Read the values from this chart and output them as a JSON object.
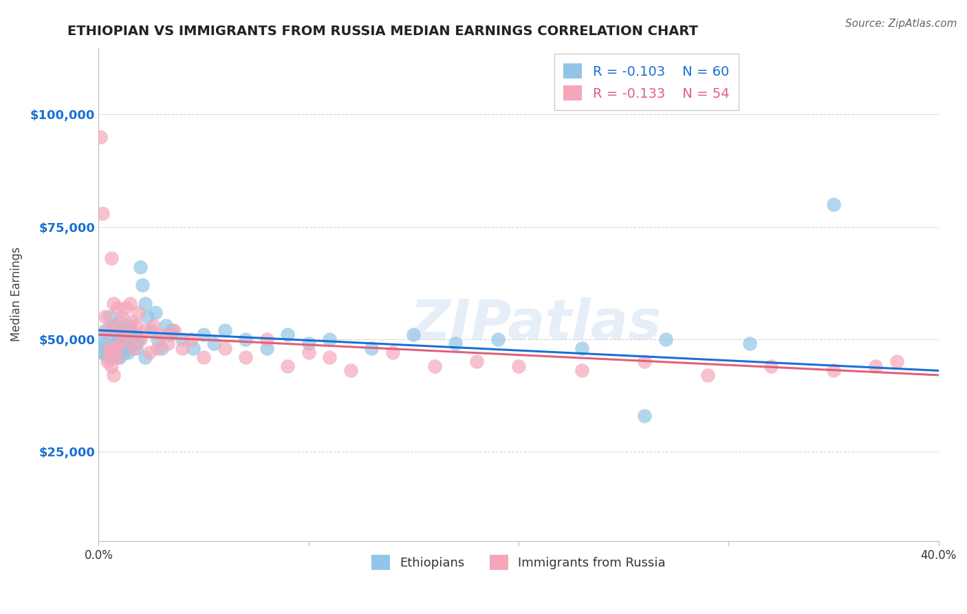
{
  "title": "ETHIOPIAN VS IMMIGRANTS FROM RUSSIA MEDIAN EARNINGS CORRELATION CHART",
  "source_text": "Source: ZipAtlas.com",
  "ylabel": "Median Earnings",
  "xlim": [
    0.0,
    0.4
  ],
  "ylim": [
    5000,
    115000
  ],
  "yticks": [
    25000,
    50000,
    75000,
    100000
  ],
  "ytick_labels": [
    "$25,000",
    "$50,000",
    "$75,000",
    "$100,000"
  ],
  "xticks": [
    0.0,
    0.1,
    0.2,
    0.3,
    0.4
  ],
  "xtick_labels": [
    "0.0%",
    "",
    "",
    "",
    "40.0%"
  ],
  "legend_labels": [
    "Ethiopians",
    "Immigrants from Russia"
  ],
  "blue_color": "#92c5e8",
  "pink_color": "#f4a7b9",
  "blue_line_color": "#1a6fd4",
  "pink_line_color": "#e0607a",
  "R_blue": -0.103,
  "N_blue": 60,
  "R_pink": -0.133,
  "N_pink": 54,
  "watermark": "ZIPatlas",
  "blue_x": [
    0.001,
    0.002,
    0.003,
    0.004,
    0.005,
    0.006,
    0.007,
    0.008,
    0.009,
    0.01,
    0.01,
    0.011,
    0.012,
    0.013,
    0.014,
    0.015,
    0.016,
    0.017,
    0.018,
    0.019,
    0.02,
    0.021,
    0.022,
    0.023,
    0.025,
    0.027,
    0.028,
    0.03,
    0.032,
    0.034,
    0.022,
    0.018,
    0.015,
    0.012,
    0.01,
    0.008,
    0.006,
    0.004,
    0.003,
    0.002,
    0.035,
    0.04,
    0.045,
    0.05,
    0.055,
    0.06,
    0.07,
    0.08,
    0.09,
    0.1,
    0.11,
    0.13,
    0.15,
    0.17,
    0.19,
    0.23,
    0.27,
    0.31,
    0.35,
    0.26
  ],
  "blue_y": [
    50000,
    47000,
    52000,
    48000,
    55000,
    46000,
    53000,
    49000,
    51000,
    54000,
    46000,
    52000,
    48000,
    50000,
    47000,
    53000,
    49000,
    51000,
    48000,
    50000,
    66000,
    62000,
    58000,
    55000,
    52000,
    56000,
    50000,
    48000,
    53000,
    51000,
    46000,
    49000,
    52000,
    47000,
    50000,
    48000,
    51000,
    46000,
    49000,
    47000,
    52000,
    50000,
    48000,
    51000,
    49000,
    52000,
    50000,
    48000,
    51000,
    49000,
    50000,
    48000,
    51000,
    49000,
    50000,
    48000,
    50000,
    49000,
    80000,
    33000
  ],
  "pink_x": [
    0.001,
    0.002,
    0.003,
    0.004,
    0.005,
    0.006,
    0.007,
    0.008,
    0.009,
    0.01,
    0.011,
    0.012,
    0.013,
    0.014,
    0.015,
    0.016,
    0.017,
    0.018,
    0.019,
    0.02,
    0.022,
    0.024,
    0.026,
    0.028,
    0.03,
    0.033,
    0.036,
    0.04,
    0.044,
    0.05,
    0.06,
    0.07,
    0.08,
    0.09,
    0.1,
    0.11,
    0.12,
    0.14,
    0.16,
    0.18,
    0.2,
    0.23,
    0.26,
    0.29,
    0.32,
    0.35,
    0.38,
    0.009,
    0.008,
    0.007,
    0.006,
    0.005,
    0.004,
    0.37
  ],
  "pink_y": [
    95000,
    78000,
    55000,
    52000,
    48000,
    68000,
    58000,
    53000,
    57000,
    49000,
    55000,
    52000,
    57000,
    50000,
    58000,
    54000,
    48000,
    53000,
    56000,
    50000,
    52000,
    47000,
    53000,
    48000,
    51000,
    49000,
    52000,
    48000,
    50000,
    46000,
    48000,
    46000,
    50000,
    44000,
    47000,
    46000,
    43000,
    47000,
    44000,
    45000,
    44000,
    43000,
    45000,
    42000,
    44000,
    43000,
    45000,
    46000,
    48000,
    42000,
    44000,
    47000,
    45000,
    44000
  ],
  "background_color": "#ffffff",
  "grid_color": "#d0d0d0",
  "title_color": "#222222",
  "axis_label_color": "#444444",
  "ytick_color": "#1a6fd4",
  "source_color": "#666666"
}
